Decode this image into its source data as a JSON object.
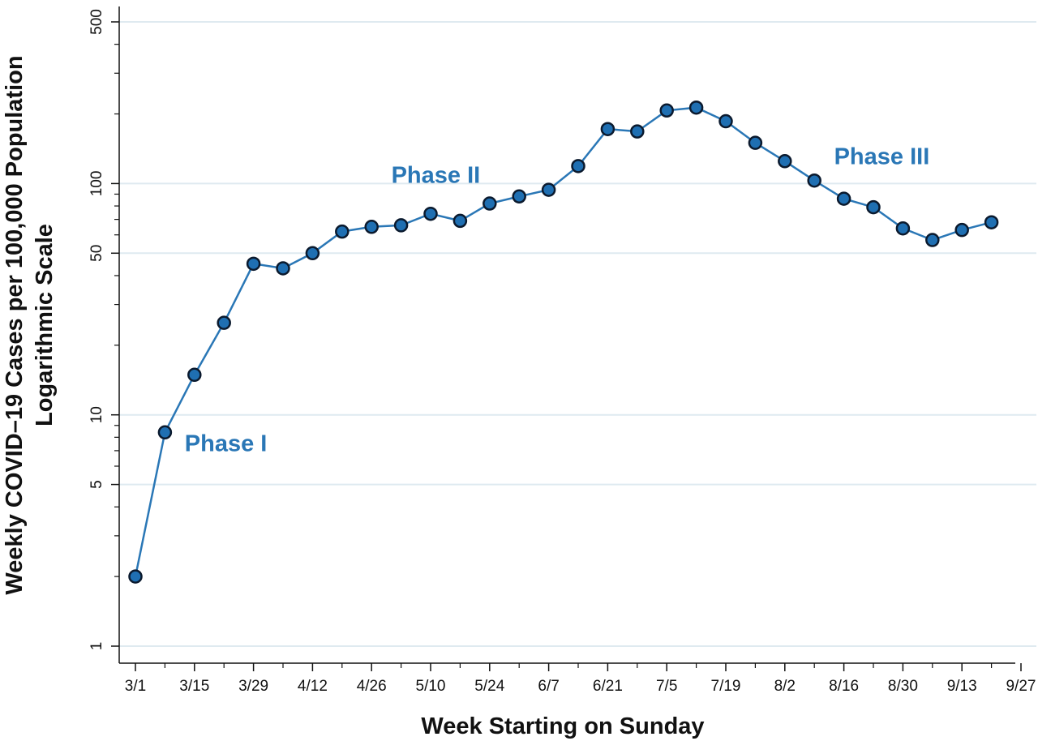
{
  "chart_data": {
    "type": "line",
    "title": "",
    "xlabel": "Week Starting on Sunday",
    "ylabel": "Weekly COVID–19 Cases per 100,000 Population",
    "ylabel_sub": "Logarithmic Scale",
    "y_scale": "log",
    "ylim": [
      1,
      500
    ],
    "y_ticks": [
      1,
      5,
      10,
      50,
      100,
      500
    ],
    "y_tick_labels": [
      "1",
      "5",
      "10",
      "50",
      "100",
      "500"
    ],
    "x_tick_labels": [
      "3/1",
      "3/15",
      "3/29",
      "4/12",
      "4/26",
      "5/10",
      "5/24",
      "6/7",
      "6/21",
      "7/5",
      "7/19",
      "8/2",
      "8/16",
      "8/30",
      "9/13",
      "9/27"
    ],
    "grid": "horizontal",
    "colors": {
      "line": "#2a77b6",
      "marker_fill": "#1f6fb2",
      "marker_edge": "#0b1a2e",
      "phase_text": "#2a77b6",
      "grid": "#dfeaf0"
    },
    "series": [
      {
        "x": [
          "3/1",
          "3/8",
          "3/15",
          "3/22",
          "3/29",
          "4/5",
          "4/12",
          "4/19",
          "4/26",
          "5/3",
          "5/10",
          "5/17",
          "5/24",
          "5/31",
          "6/7",
          "6/14",
          "6/21",
          "6/28",
          "7/5",
          "7/12",
          "7/19",
          "7/26",
          "8/2",
          "8/9",
          "8/16",
          "8/23",
          "8/30",
          "9/6",
          "9/13",
          "9/20"
        ],
        "values": [
          2.0,
          8.4,
          14.9,
          25,
          45,
          43,
          50,
          62,
          65,
          66,
          74,
          69,
          82,
          88,
          94,
          119,
          172,
          168,
          207,
          213,
          186,
          150,
          125,
          103,
          86,
          79,
          64,
          57,
          63,
          68
        ]
      }
    ],
    "annotations": [
      {
        "text": "Phase I",
        "x": "3/15",
        "y": 7.4
      },
      {
        "text": "Phase II",
        "x": "5/3",
        "y": 107
      },
      {
        "text": "Phase III",
        "x": "8/16",
        "y": 129
      }
    ]
  }
}
